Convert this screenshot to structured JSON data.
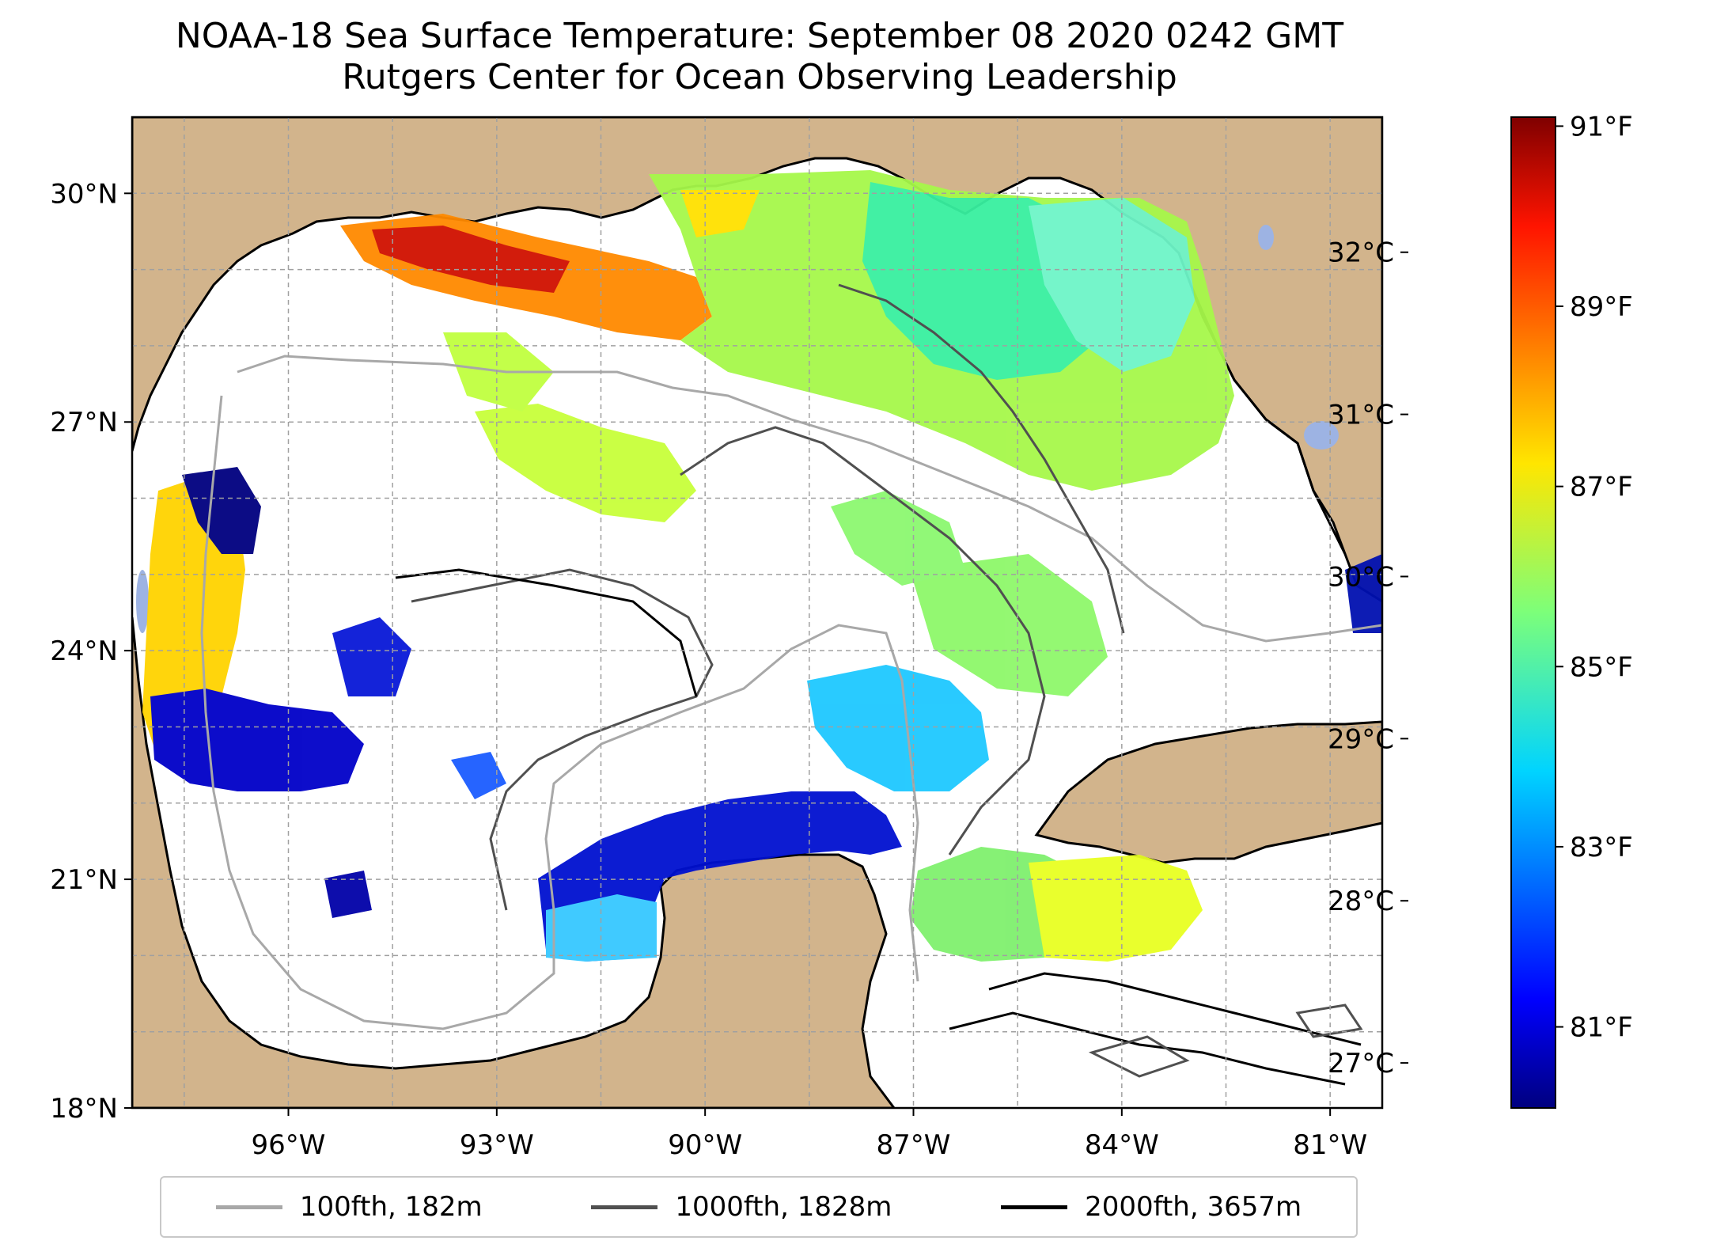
{
  "title": {
    "line1": "NOAA-18 Sea Surface Temperature: September 08 2020 0242 GMT",
    "line2": "Rutgers Center for Ocean Observing Leadership"
  },
  "map": {
    "region": "Gulf of Mexico",
    "lon_range": [
      -98.25,
      -80.25
    ],
    "lat_range": [
      18,
      31
    ],
    "lat_ticks": [
      {
        "value": 30,
        "label": "30°N"
      },
      {
        "value": 27,
        "label": "27°N"
      },
      {
        "value": 24,
        "label": "24°N"
      },
      {
        "value": 21,
        "label": "21°N"
      },
      {
        "value": 18,
        "label": "18°N"
      }
    ],
    "lon_ticks": [
      {
        "value": -96,
        "label": "96°W"
      },
      {
        "value": -93,
        "label": "93°W"
      },
      {
        "value": -90,
        "label": "90°W"
      },
      {
        "value": -87,
        "label": "87°W"
      },
      {
        "value": -84,
        "label": "84°W"
      },
      {
        "value": -81,
        "label": "81°W"
      }
    ],
    "colors": {
      "land": "#d2b48c",
      "water": "#ffffff",
      "lake": "#9db3e3",
      "grid": "#a0a0a0"
    }
  },
  "colorbar": {
    "range_f": [
      80.1,
      91.1
    ],
    "fahrenheit_ticks": [
      "91°F",
      "89°F",
      "87°F",
      "85°F",
      "83°F",
      "81°F"
    ],
    "celsius_ticks": [
      "32°C",
      "31°C",
      "30°C",
      "29°C",
      "28°C",
      "27°C"
    ],
    "celsius_values": [
      32,
      31,
      30,
      29,
      28,
      27
    ],
    "fahrenheit_values": [
      91,
      89,
      87,
      85,
      83,
      81
    ],
    "colormap": "jet"
  },
  "legend": {
    "items": [
      {
        "label": "100fth, 182m",
        "color": "#a8a8a8"
      },
      {
        "label": "1000fth, 1828m",
        "color": "#505050"
      },
      {
        "label": "2000fth, 3657m",
        "color": "#000000"
      }
    ]
  }
}
